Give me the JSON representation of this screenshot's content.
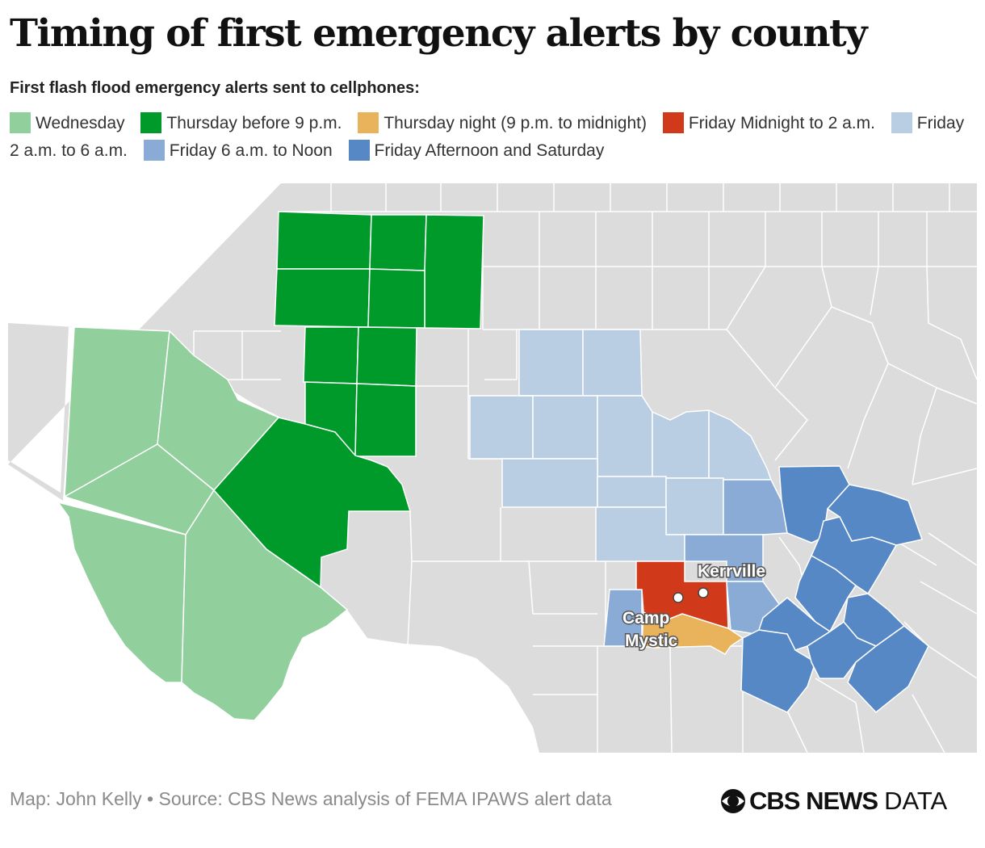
{
  "title": "Timing of first emergency alerts by county",
  "subtitle": "First flash flood emergency alerts sent to cellphones:",
  "legend": [
    {
      "label": "Wednesday",
      "color": "#91cf9c"
    },
    {
      "label": "Thursday before 9 p.m.",
      "color": "#009a2a"
    },
    {
      "label": "Thursday night (9 p.m. to midnight)",
      "color": "#e8b35a"
    },
    {
      "label": "Friday Midnight to 2 a.m.",
      "color": "#d03a1b"
    },
    {
      "label": "Friday 2 a.m. to 6 a.m.",
      "color": "#b9cde3"
    },
    {
      "label": "Friday 6 a.m. to Noon",
      "color": "#8aabd6"
    },
    {
      "label": "Friday Afternoon and Saturday",
      "color": "#5688c5"
    }
  ],
  "map": {
    "base_color": "#dcdcdc",
    "border_color": "#ffffff",
    "places": [
      {
        "name": "Kerrville",
        "lines": [
          "Kerrville"
        ]
      },
      {
        "name": "Camp Mystic",
        "lines": [
          "Camp",
          "Mystic"
        ]
      }
    ]
  },
  "footer": {
    "credit": "Map: John Kelly • Source: CBS News analysis of FEMA IPAWS alert data"
  },
  "logo": {
    "brand": "CBS NEWS",
    "suffix": "DATA",
    "icon": "cbs-eye-icon"
  }
}
